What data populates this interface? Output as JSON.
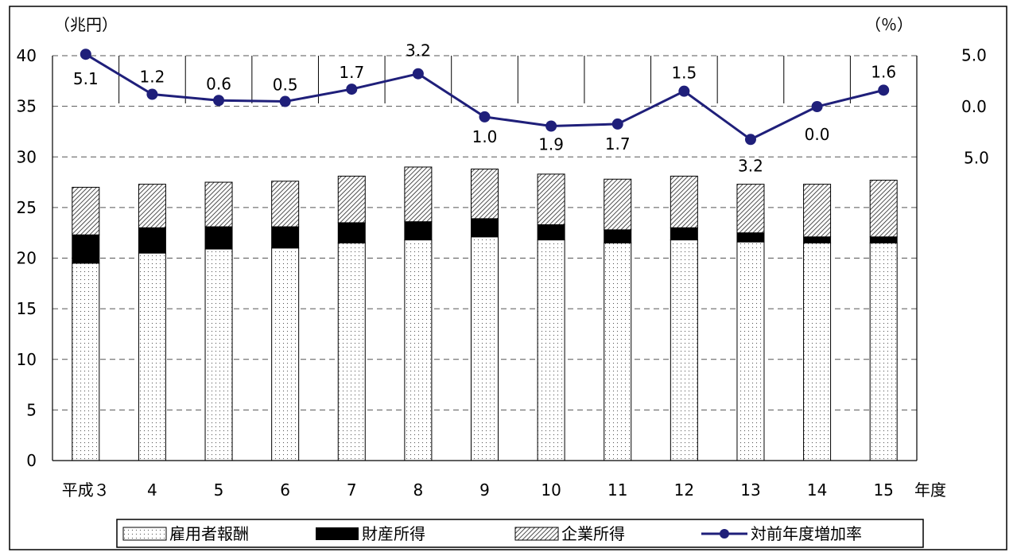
{
  "chart_data": {
    "type": "bar",
    "stacked": true,
    "categories": [
      "平成３",
      "4",
      "5",
      "6",
      "7",
      "8",
      "9",
      "10",
      "11",
      "12",
      "13",
      "14",
      "15"
    ],
    "x_unit_label": "年度",
    "left_axis": {
      "unit_label": "（兆円）",
      "ylim": [
        0,
        40
      ],
      "ticks": [
        "0",
        "5",
        "10",
        "15",
        "20",
        "25",
        "30",
        "35",
        "40"
      ]
    },
    "right_axis": {
      "unit_label": "（％）",
      "ylim": [
        -5,
        5
      ],
      "ticks": [
        "5.0",
        "0.0",
        "5.0"
      ]
    },
    "grid": "horizontal dashed",
    "series": [
      {
        "name": "雇用者報酬",
        "kind": "bar",
        "pattern": "dotted",
        "values": [
          19.5,
          20.5,
          20.9,
          21.0,
          21.5,
          21.8,
          22.1,
          21.8,
          21.5,
          21.8,
          21.6,
          21.5,
          21.5
        ]
      },
      {
        "name": "財産所得",
        "kind": "bar",
        "pattern": "solid-black",
        "values": [
          2.8,
          2.5,
          2.2,
          2.1,
          2.0,
          1.8,
          1.8,
          1.5,
          1.3,
          1.2,
          0.9,
          0.6,
          0.6
        ]
      },
      {
        "name": "企業所得",
        "kind": "bar",
        "pattern": "hatched",
        "values": [
          4.7,
          4.3,
          4.4,
          4.5,
          4.6,
          5.4,
          4.9,
          5.0,
          5.0,
          5.1,
          4.8,
          5.2,
          5.6
        ]
      },
      {
        "name": "対前年度増加率",
        "kind": "line",
        "axis": "right",
        "color": "#1f1f7a",
        "values": [
          5.1,
          1.2,
          0.6,
          0.5,
          1.7,
          3.2,
          -1.0,
          -1.9,
          -1.7,
          1.5,
          -3.2,
          0.0,
          1.6
        ],
        "labels": [
          "5.1",
          "1.2",
          "0.6",
          "0.5",
          "1.7",
          "3.2",
          "1.0",
          "1.9",
          "1.7",
          "1.5",
          "3.2",
          "0.0",
          "1.6"
        ]
      }
    ],
    "legend_position": "bottom"
  }
}
